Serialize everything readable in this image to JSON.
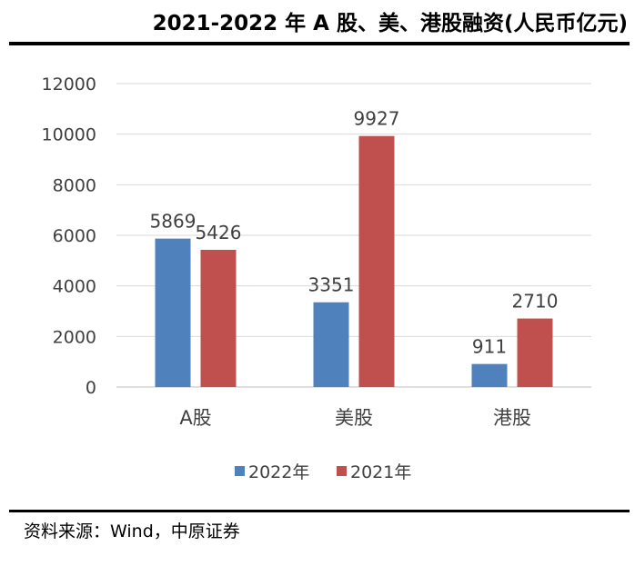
{
  "header": {
    "title": "2021-2022 年 A 股、美、港股融资(人民币亿元)"
  },
  "footer": {
    "source": "资料来源：Wind，中原证券"
  },
  "chart_data": {
    "type": "bar",
    "title": "2021-2022 年 A 股、美、港股融资(人民币亿元)",
    "categories": [
      "A股",
      "美股",
      "港股"
    ],
    "series": [
      {
        "name": "2022年",
        "values": [
          5869,
          3351,
          911
        ],
        "color": "#4f81bd"
      },
      {
        "name": "2021年",
        "values": [
          5426,
          9927,
          2710
        ],
        "color": "#c0504d"
      }
    ],
    "ylim": [
      0,
      12000
    ],
    "yticks": [
      0,
      2000,
      4000,
      6000,
      8000,
      10000,
      12000
    ],
    "grid": true,
    "legend": "bottom",
    "xlabel": "",
    "ylabel": ""
  }
}
